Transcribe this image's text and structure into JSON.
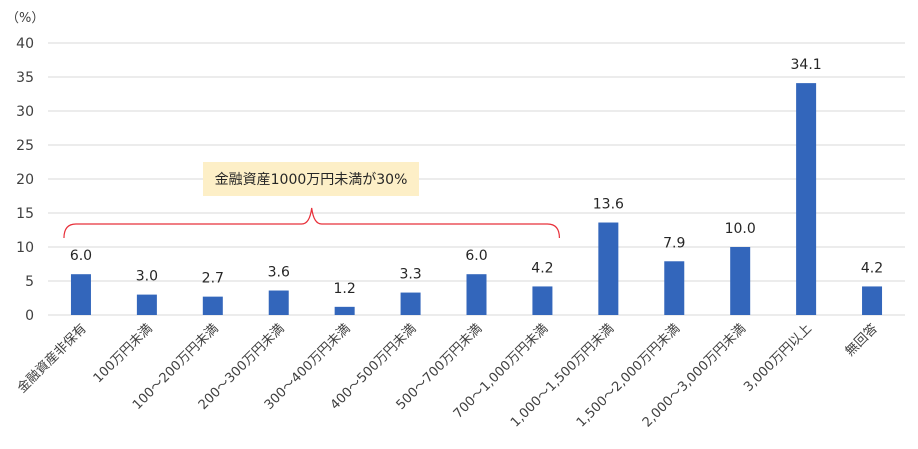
{
  "chart_data": {
    "type": "bar",
    "unit_label": "（%）",
    "ylim": [
      0,
      40
    ],
    "yticks": [
      0,
      5,
      10,
      15,
      20,
      25,
      30,
      35,
      40
    ],
    "grid": true,
    "categories": [
      "金融資産非保有",
      "100万円未満",
      "100～200万円未満",
      "200～300万円未満",
      "300～400万円未満",
      "400～500万円未満",
      "500～700万円未満",
      "700～1,000万円未満",
      "1,000～1,500万円未満",
      "1,500～2,000万円未満",
      "2,000～3,000万円未満",
      "3,000万円以上",
      "無回答"
    ],
    "values": [
      6.0,
      3.0,
      2.7,
      3.6,
      1.2,
      3.3,
      6.0,
      4.2,
      13.6,
      7.9,
      10.0,
      34.1,
      4.2
    ],
    "data_labels": [
      "6.0",
      "3.0",
      "2.7",
      "3.6",
      "1.2",
      "3.3",
      "6.0",
      "4.2",
      "13.6",
      "7.9",
      "10.0",
      "34.1",
      "4.2"
    ],
    "annotation": {
      "text": "金融資産1000万円未満が30%",
      "spans_categories": [
        0,
        7
      ]
    }
  },
  "colors": {
    "bar": "#3366bb",
    "grid": "#d9d9d9",
    "brace": "#e8303a",
    "annotation_bg": "#fdefc7"
  }
}
